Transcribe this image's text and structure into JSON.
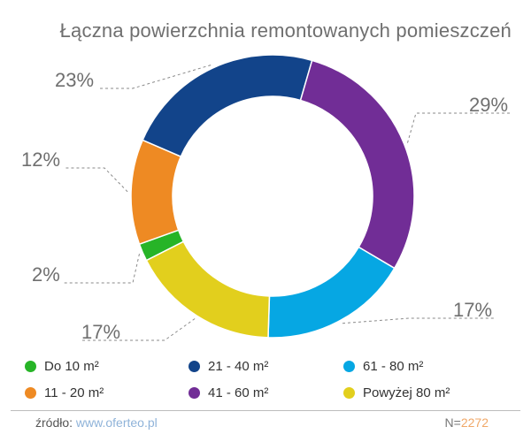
{
  "title": "Łączna powierzchnia remontowanych pomieszczeń",
  "chart_data": {
    "type": "pie",
    "donut": true,
    "labels": [
      "Do 10 m²",
      "11 - 20 m²",
      "21 - 40 m²",
      "41 - 60 m²",
      "61 - 80 m²",
      "Powyżej 80 m²"
    ],
    "values": [
      2,
      12,
      23,
      29,
      17,
      17
    ],
    "value_labels": [
      "2%",
      "12%",
      "23%",
      "29%",
      "17%",
      "17%"
    ],
    "colors": [
      "#27b427",
      "#ee8a23",
      "#12448a",
      "#712d96",
      "#06a7e3",
      "#e2cf1d"
    ],
    "legend": [
      {
        "label": "Do 10 m²",
        "color": "#27b427"
      },
      {
        "label": "21 - 40 m²",
        "color": "#12448a"
      },
      {
        "label": "61 - 80 m²",
        "color": "#06a7e3"
      },
      {
        "label": "11 - 20 m²",
        "color": "#ee8a23"
      },
      {
        "label": "41 - 60 m²",
        "color": "#712d96"
      },
      {
        "label": "Powyżej 80 m²",
        "color": "#e2cf1d"
      }
    ]
  },
  "footer": {
    "source_label": "źródło:",
    "source_link": "www.oferteo.pl",
    "n_label": "N=",
    "n_value": "2272"
  }
}
